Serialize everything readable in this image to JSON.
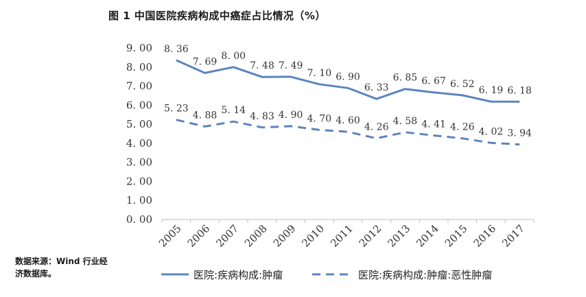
{
  "chart_data": {
    "type": "line",
    "title": "图 1   中国医院疾病构成中癌症占比情况（%）",
    "categories": [
      "2005",
      "2006",
      "2007",
      "2008",
      "2009",
      "2010",
      "2011",
      "2012",
      "2013",
      "2014",
      "2015",
      "2016",
      "2017"
    ],
    "series": [
      {
        "name": "医院:疾病构成:肿瘤",
        "values": [
          8.36,
          7.69,
          8.0,
          7.48,
          7.49,
          7.1,
          6.9,
          6.33,
          6.85,
          6.67,
          6.52,
          6.19,
          6.18
        ],
        "labels": [
          "8. 36",
          "7. 69",
          "8. 00",
          "7. 48",
          "7. 49",
          "7. 10",
          "6. 90",
          "6. 33",
          "6. 85",
          "6. 67",
          "6. 52",
          "6. 19",
          "6. 18"
        ],
        "style": "solid",
        "color": "#5b84bf"
      },
      {
        "name": "医院:疾病构成:肿瘤:恶性肿瘤",
        "values": [
          5.23,
          4.88,
          5.14,
          4.83,
          4.9,
          4.7,
          4.6,
          4.26,
          4.58,
          4.41,
          4.26,
          4.02,
          3.94
        ],
        "labels": [
          "5. 23",
          "4. 88",
          "5. 14",
          "4. 83",
          "4. 90",
          "4. 70",
          "4. 60",
          "4. 26",
          "4. 58",
          "4. 41",
          "4. 26",
          "4. 02",
          "3. 94"
        ],
        "style": "dashed",
        "color": "#5b84bf"
      }
    ],
    "y_ticks": [
      "0. 00",
      "1. 00",
      "2. 00",
      "3. 00",
      "4. 00",
      "5. 00",
      "6. 00",
      "7. 00",
      "8. 00",
      "9. 00"
    ],
    "ylim": [
      0,
      9
    ],
    "grid": false,
    "legend_position": "bottom",
    "source_note": "数据来源：Wind 行业经济数据库。"
  }
}
